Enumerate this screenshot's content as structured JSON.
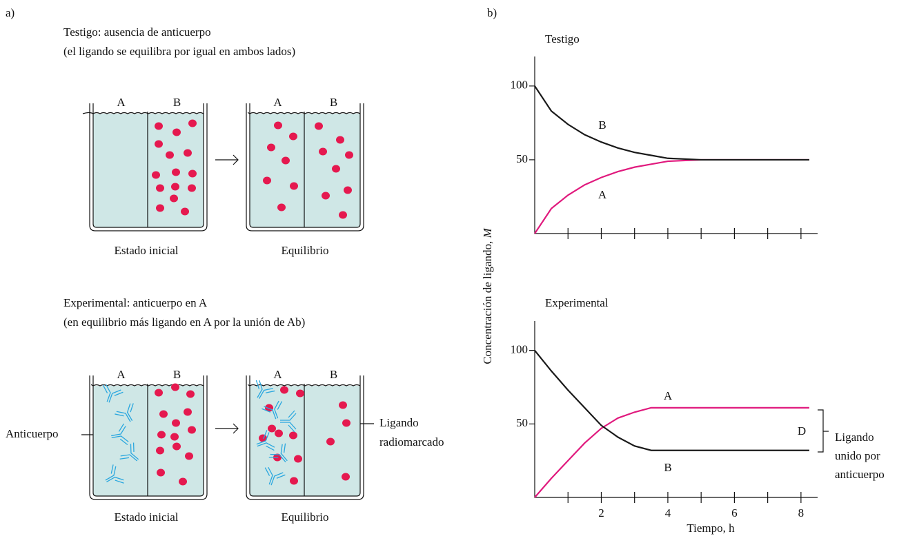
{
  "panel_a": {
    "label": "a)",
    "control": {
      "title": [
        "Testigo: ausencia de anticuerpo",
        "(el ligando se equilibra por igual en ambos lados)"
      ],
      "start": "Estado inicial",
      "end": "Equilibrio"
    },
    "experimental": {
      "title": [
        "Experimental: anticuerpo en A",
        "(en equilibrio más ligando en A por la unión de Ab)"
      ],
      "start": "Estado inicial",
      "end": "Equilibrio",
      "antibody": "Anticuerpo",
      "ligand": [
        "Ligando",
        "radiomarcado"
      ]
    },
    "sides": [
      "A",
      "B"
    ]
  },
  "panel_b_label": "b)",
  "chart_data": [
    {
      "type": "line",
      "title": "Testigo",
      "y_label": "Concentración de ligando,",
      "y_label_unit": "M",
      "x": [
        0,
        0.5,
        1,
        1.5,
        2,
        2.5,
        3,
        3.5,
        4,
        5,
        6,
        7,
        8.25
      ],
      "series": [
        {
          "name": "A",
          "color": "#e0197d",
          "values": [
            0,
            17,
            26,
            33,
            38,
            42,
            45,
            47,
            49,
            50,
            50,
            50,
            50
          ]
        },
        {
          "name": "B",
          "color": "#1a1a1a",
          "values": [
            100,
            83,
            74,
            67,
            62,
            58,
            55,
            53,
            51,
            50,
            50,
            50,
            50
          ]
        }
      ],
      "xlim": [
        0,
        8.5
      ],
      "ylim": [
        0,
        120
      ],
      "xticks": [
        1,
        2,
        3,
        4,
        5,
        6,
        7,
        8
      ],
      "show_xtick_labels": false,
      "yticks": [
        50,
        100
      ]
    },
    {
      "type": "line",
      "title": "Experimental",
      "x_label": "Tiempo, h",
      "x": [
        0,
        0.5,
        1,
        1.5,
        2,
        2.5,
        3,
        3.5,
        4,
        5,
        6,
        7,
        8.25
      ],
      "series": [
        {
          "name": "A",
          "color": "#e0197d",
          "values": [
            0,
            13,
            25,
            37,
            47,
            54,
            58,
            61,
            61,
            61,
            61,
            61,
            61
          ]
        },
        {
          "name": "B",
          "color": "#1a1a1a",
          "values": [
            100,
            86,
            73,
            61,
            49,
            41,
            35,
            32,
            32,
            32,
            32,
            32,
            32
          ]
        }
      ],
      "xlim": [
        0,
        8.5
      ],
      "ylim": [
        0,
        120
      ],
      "xticks": [
        2,
        4,
        6,
        8
      ],
      "xminor_ticks": [
        1,
        3,
        5,
        7
      ],
      "show_xtick_labels": true,
      "yticks": [
        50,
        100
      ],
      "annotation": "D",
      "bracket_label": [
        "Ligando",
        "unido por",
        "anticuerpo"
      ]
    }
  ]
}
